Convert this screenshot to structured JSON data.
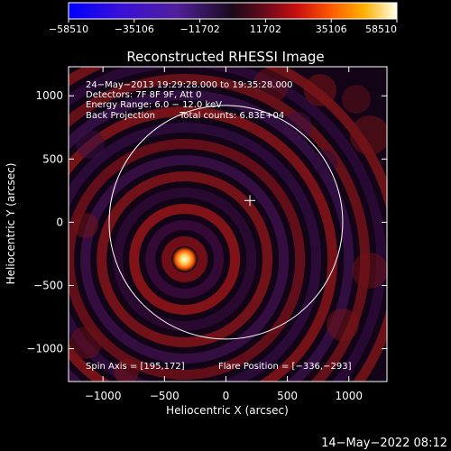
{
  "chart_data": {
    "type": "heatmap",
    "title": "Reconstructed RHESSI Image",
    "xlabel": "Heliocentric X (arcsec)",
    "ylabel": "Heliocentric Y (arcsec)",
    "xlim": [
      -1280,
      1310
    ],
    "ylim": [
      -1260,
      1230
    ],
    "x_ticks": [
      -1000,
      -500,
      0,
      500,
      1000
    ],
    "y_ticks": [
      1000,
      500,
      0,
      -500,
      -1000
    ],
    "x_tick_labels": [
      "−1000",
      "−500",
      "0",
      "500",
      "1000"
    ],
    "y_tick_labels": [
      "1000",
      "500",
      "0",
      "−500",
      "−1000"
    ],
    "colorbar": {
      "range": [
        -58510,
        58510
      ],
      "tick_values": [
        -58510,
        -35106,
        -11702,
        11702,
        35106,
        58510
      ],
      "tick_labels": [
        "−58510",
        "−35106",
        "−11702",
        "11702",
        "35106",
        "58510"
      ]
    },
    "annotations": [
      "24−May−2013 19:29:28.000 to 19:35:28.000",
      "Detectors: 7F 8F 9F, Att 0",
      "Energy Range: 6.0 − 12.0 keV",
      "Back Projection",
      "Total counts: 6.83E+04",
      "Spin Axis = [195,172]",
      "Flare Position = [−336,−293]"
    ],
    "flare_position": [
      -336,
      -293
    ],
    "spin_axis": [
      195,
      172
    ],
    "solar_limb_radius_arcsec": 950,
    "grid": false
  },
  "footer": {
    "timestamp": "14−May−2022 08:12"
  }
}
